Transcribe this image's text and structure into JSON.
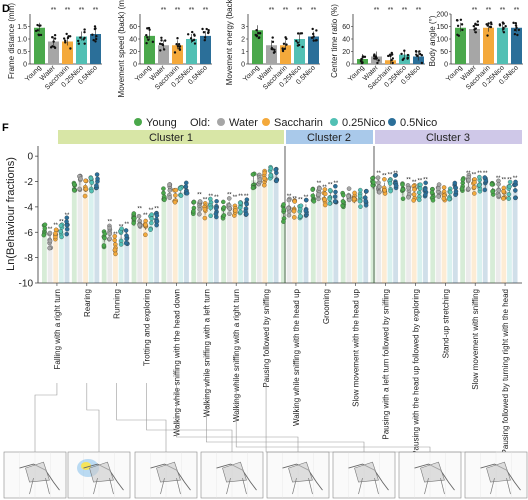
{
  "panel_d": {
    "letter": "D",
    "groups": [
      "Young",
      "Water",
      "Saccharin",
      "0.25Nico",
      "0.5Nico"
    ],
    "colors": [
      "#4aa84b",
      "#a6a6a6",
      "#f4a93b",
      "#52c0b4",
      "#2b6f99"
    ],
    "charts": [
      {
        "type": "bar",
        "ylabel": "Frame distance (mm)",
        "yticks": [
          "0",
          "0.5",
          "1.0",
          "1.5"
        ],
        "ylim": [
          0,
          2.0
        ],
        "values": [
          1.45,
          0.9,
          0.9,
          1.1,
          1.2
        ]
      },
      {
        "type": "bar",
        "ylabel": "Movement speed (back) (mm/s)",
        "yticks": [
          "0",
          "20",
          "40",
          "60"
        ],
        "ylim": [
          0,
          80
        ],
        "values": [
          45,
          30,
          30,
          40,
          45
        ]
      },
      {
        "type": "bar",
        "ylabel": "Movement energy (back)",
        "yticks": [
          "0",
          "1",
          "2",
          "3"
        ],
        "ylim": [
          0,
          4
        ],
        "values": [
          2.7,
          1.5,
          1.5,
          2.0,
          2.2
        ]
      },
      {
        "type": "bar",
        "ylabel": "Center time ratio (%)",
        "yticks": [
          "0",
          "20",
          "40",
          "60"
        ],
        "ylim": [
          0,
          80
        ],
        "values": [
          8,
          12,
          6,
          15,
          12
        ]
      },
      {
        "type": "bar",
        "ylabel": "Body angle (°)",
        "yticks": [
          "0",
          "50",
          "100",
          "150",
          "200"
        ],
        "ylim": [
          0,
          200
        ],
        "values": [
          145,
          140,
          145,
          145,
          145
        ]
      }
    ]
  },
  "panel_f": {
    "letter": "F",
    "legend": {
      "young": "Young",
      "old": "Old:",
      "water": "Water",
      "saccharin": "Saccharin",
      "nico025": "0.25Nico",
      "nico05": "0.5Nico"
    },
    "clusters": [
      {
        "name": "Cluster 1",
        "color": "#d8e6a6"
      },
      {
        "name": "Cluster 2",
        "color": "#a9c9ea"
      },
      {
        "name": "Cluster 3",
        "color": "#cfc8e8"
      }
    ],
    "ylabel": "Ln(Behaviour fractions)",
    "yticks": [
      "-10",
      "-8",
      "-6",
      "-4",
      "-2",
      "0"
    ],
    "ylim": [
      -10,
      0.8
    ],
    "chart_data": {
      "type": "bar",
      "categories": [
        "Falling with a right turn",
        "Rearing",
        "Running",
        "Trotting and exploring",
        "Walking while sniffing with the head down",
        "Walking while sniffing with a left turn",
        "Walking while sniffing with a right turn",
        "Pausing followed by sniffing",
        "Walking while sniffing with the head up",
        "Grooming",
        "Slow movement with the head up",
        "Pausing with a left turn followed by sniffing",
        "Pausing with the head up followed by exploring",
        "Stand-up stretching",
        "Slow movement with sniffing",
        "Pausing followed by turning right with the head"
      ],
      "series": [
        {
          "name": "Young",
          "values": [
            -6.0,
            -2.3,
            -6.5,
            -5.2,
            -3.0,
            -4.2,
            -4.2,
            -1.9,
            -4.5,
            -3.2,
            -3.5,
            -2.3,
            -2.8,
            -2.9,
            -2.3,
            -2.8
          ]
        },
        {
          "name": "Water",
          "values": [
            -6.6,
            -2.0,
            -6.0,
            -5.0,
            -2.9,
            -3.9,
            -3.9,
            -1.7,
            -4.0,
            -3.0,
            -3.2,
            -2.2,
            -2.7,
            -2.8,
            -2.2,
            -2.6
          ]
        },
        {
          "name": "Saccharin",
          "values": [
            -6.3,
            -2.5,
            -7.0,
            -5.5,
            -3.1,
            -4.3,
            -4.1,
            -1.8,
            -4.2,
            -3.3,
            -3.4,
            -2.4,
            -2.9,
            -3.0,
            -2.3,
            -2.7
          ]
        },
        {
          "name": "0.25Nico",
          "values": [
            -6.0,
            -2.2,
            -6.4,
            -5.1,
            -2.8,
            -4.0,
            -4.0,
            -1.5,
            -4.3,
            -3.1,
            -3.3,
            -2.3,
            -2.8,
            -2.9,
            -2.2,
            -2.7
          ]
        },
        {
          "name": "0.5Nico",
          "values": [
            -5.5,
            -2.0,
            -6.2,
            -5.0,
            -2.7,
            -4.1,
            -4.0,
            -1.5,
            -4.1,
            -3.0,
            -3.2,
            -2.2,
            -2.7,
            -2.8,
            -2.2,
            -2.6
          ]
        }
      ],
      "cluster_of_category": [
        0,
        0,
        0,
        0,
        0,
        0,
        0,
        0,
        1,
        1,
        1,
        2,
        2,
        2,
        2,
        2
      ]
    }
  }
}
